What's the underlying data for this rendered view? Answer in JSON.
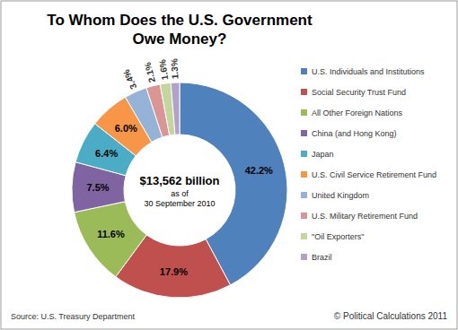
{
  "chart_data": {
    "type": "donut",
    "title": "To Whom Does the U.S. Government Owe Money?",
    "categories": [
      "U.S. Individuals and Institutions",
      "Social Security Trust Fund",
      "All Other Foreign Nations",
      "China (and Hong Kong)",
      "Japan",
      "U.S. Civil Service Retirement Fund",
      "United Kingdom",
      "U.S. Military Retirement Fund",
      "\"Oil Exporters\"",
      "Brazil"
    ],
    "values": [
      42.2,
      17.9,
      11.6,
      7.5,
      6.4,
      6.0,
      3.4,
      2.1,
      1.6,
      1.3
    ],
    "value_labels": [
      "42.2%",
      "17.9%",
      "11.6%",
      "7.5%",
      "6.4%",
      "6.0%",
      "3.4%",
      "2.1%",
      "1.6%",
      "1.3%"
    ],
    "colors": [
      "#4F81BD",
      "#C0504D",
      "#9BBB59",
      "#8064A2",
      "#4BACC6",
      "#F79646",
      "#95B3D7",
      "#D99694",
      "#C3D69B",
      "#B2A2C7"
    ],
    "data_labels": true,
    "legend": "right",
    "annotations": [
      "$13,562 billion",
      "as of",
      "30 September 2010",
      "Source: U.S. Treasury Department",
      "© Political Calculations 2011"
    ]
  }
}
